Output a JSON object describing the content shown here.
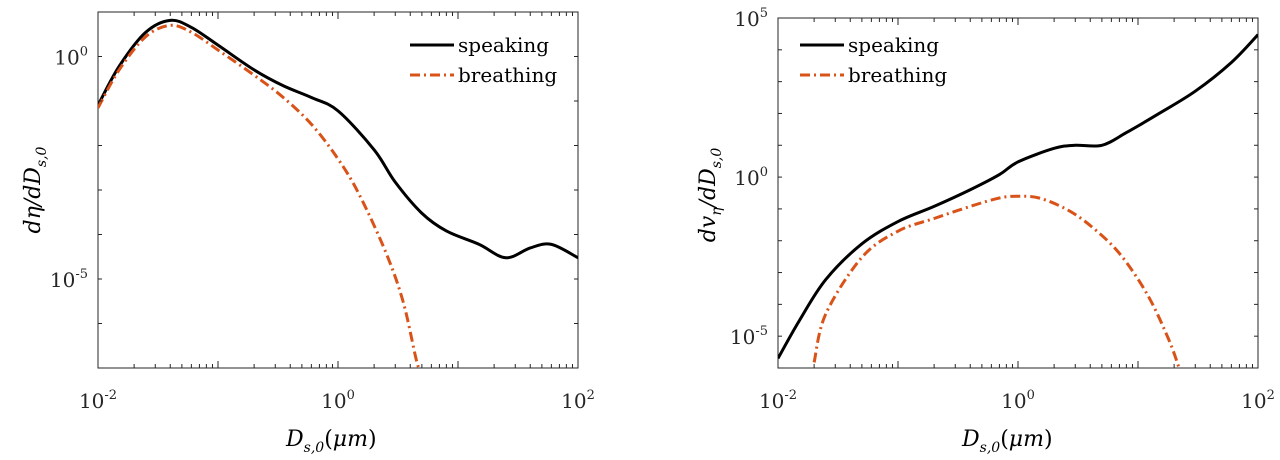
{
  "chart_data": [
    {
      "type": "line",
      "x_scale": "log",
      "y_scale": "log",
      "xlim": [
        0.01,
        100
      ],
      "ylim": [
        1e-07,
        10
      ],
      "xticks": [
        {
          "base": "10",
          "exp": "-2"
        },
        {
          "base": "10",
          "exp": "0"
        },
        {
          "base": "10",
          "exp": "2"
        }
      ],
      "yticks": [
        {
          "base": "10",
          "exp": "-5"
        },
        {
          "base": "10",
          "exp": "0"
        }
      ],
      "xlabel": "Ds,0(μm)",
      "ylabel": "dη/dDs,0",
      "legend_position": "top-right",
      "series": [
        {
          "name": "speaking",
          "color": "#000000",
          "dash": "solid",
          "points": [
            [
              0.01,
              0.08
            ],
            [
              0.015,
              0.6
            ],
            [
              0.025,
              3.5
            ],
            [
              0.04,
              6.5
            ],
            [
              0.06,
              4.5
            ],
            [
              0.1,
              1.8
            ],
            [
              0.2,
              0.5
            ],
            [
              0.35,
              0.22
            ],
            [
              0.6,
              0.12
            ],
            [
              1,
              0.06
            ],
            [
              2,
              0.008
            ],
            [
              3,
              0.0015
            ],
            [
              5,
              0.0003
            ],
            [
              8,
              0.00012
            ],
            [
              15,
              6e-05
            ],
            [
              25,
              3e-05
            ],
            [
              40,
              5e-05
            ],
            [
              60,
              6e-05
            ],
            [
              100,
              3e-05
            ]
          ]
        },
        {
          "name": "breathing",
          "color": "#d95319",
          "dash": "dash-dot",
          "points": [
            [
              0.01,
              0.07
            ],
            [
              0.015,
              0.5
            ],
            [
              0.025,
              2.8
            ],
            [
              0.04,
              5
            ],
            [
              0.06,
              3.5
            ],
            [
              0.1,
              1.4
            ],
            [
              0.2,
              0.38
            ],
            [
              0.35,
              0.12
            ],
            [
              0.6,
              0.03
            ],
            [
              1,
              0.005
            ],
            [
              1.5,
              0.0008
            ],
            [
              2.5,
              4e-05
            ],
            [
              3.5,
              3e-06
            ],
            [
              4.5,
              1.5e-07
            ],
            [
              5,
              7e-08
            ]
          ]
        }
      ]
    },
    {
      "type": "line",
      "x_scale": "log",
      "y_scale": "log",
      "xlim": [
        0.01,
        100
      ],
      "ylim": [
        1e-06,
        100000
      ],
      "xticks": [
        {
          "base": "10",
          "exp": "-2"
        },
        {
          "base": "10",
          "exp": "0"
        },
        {
          "base": "10",
          "exp": "2"
        }
      ],
      "yticks": [
        {
          "base": "10",
          "exp": "-5"
        },
        {
          "base": "10",
          "exp": "0"
        },
        {
          "base": "10",
          "exp": "5"
        }
      ],
      "xlabel": "Ds,0(μm)",
      "ylabel": "dvη/dDs,0",
      "legend_position": "top-left",
      "series": [
        {
          "name": "speaking",
          "color": "#000000",
          "dash": "solid",
          "points": [
            [
              0.01,
              2e-06
            ],
            [
              0.015,
              3e-05
            ],
            [
              0.025,
              0.0006
            ],
            [
              0.05,
              0.008
            ],
            [
              0.1,
              0.04
            ],
            [
              0.2,
              0.12
            ],
            [
              0.4,
              0.4
            ],
            [
              0.7,
              1.2
            ],
            [
              1,
              3
            ],
            [
              2,
              8
            ],
            [
              3,
              10
            ],
            [
              5,
              10
            ],
            [
              8,
              25
            ],
            [
              15,
              100
            ],
            [
              30,
              500
            ],
            [
              60,
              4000
            ],
            [
              100,
              30000
            ]
          ]
        },
        {
          "name": "breathing",
          "color": "#d95319",
          "dash": "dash-dot",
          "points": [
            [
              0.02,
              1.5e-06
            ],
            [
              0.025,
              5e-05
            ],
            [
              0.05,
              0.003
            ],
            [
              0.1,
              0.02
            ],
            [
              0.2,
              0.05
            ],
            [
              0.4,
              0.12
            ],
            [
              0.7,
              0.22
            ],
            [
              1,
              0.25
            ],
            [
              1.5,
              0.22
            ],
            [
              2.5,
              0.1
            ],
            [
              4,
              0.03
            ],
            [
              7,
              0.004
            ],
            [
              12,
              0.0002
            ],
            [
              18,
              8e-06
            ],
            [
              22,
              1e-06
            ]
          ]
        }
      ]
    }
  ]
}
